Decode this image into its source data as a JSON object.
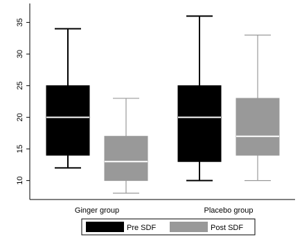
{
  "chart_data": {
    "type": "boxplot",
    "title": "",
    "xlabel": "",
    "ylabel": "",
    "ylim": [
      7,
      38
    ],
    "yticks": [
      10,
      15,
      20,
      25,
      30,
      35
    ],
    "grid": false,
    "categories": [
      "Ginger group",
      "Placebo group"
    ],
    "series": [
      {
        "name": "Pre SDF",
        "color": "#000000",
        "median_color": "#ffffff",
        "boxes": [
          {
            "whisker_low": 12,
            "q1": 14,
            "median": 20,
            "q3": 25,
            "whisker_high": 34
          },
          {
            "whisker_low": 10,
            "q1": 13,
            "median": 20,
            "q3": 25,
            "whisker_high": 36
          }
        ]
      },
      {
        "name": "Post SDF",
        "color": "#999999",
        "median_color": "#ffffff",
        "boxes": [
          {
            "whisker_low": 8,
            "q1": 10,
            "median": 13,
            "q3": 17,
            "whisker_high": 23
          },
          {
            "whisker_low": 10,
            "q1": 14,
            "median": 17,
            "q3": 23,
            "whisker_high": 33
          }
        ]
      }
    ],
    "legend": {
      "position": "bottom",
      "entries": [
        "Pre SDF",
        "Post SDF"
      ]
    }
  }
}
